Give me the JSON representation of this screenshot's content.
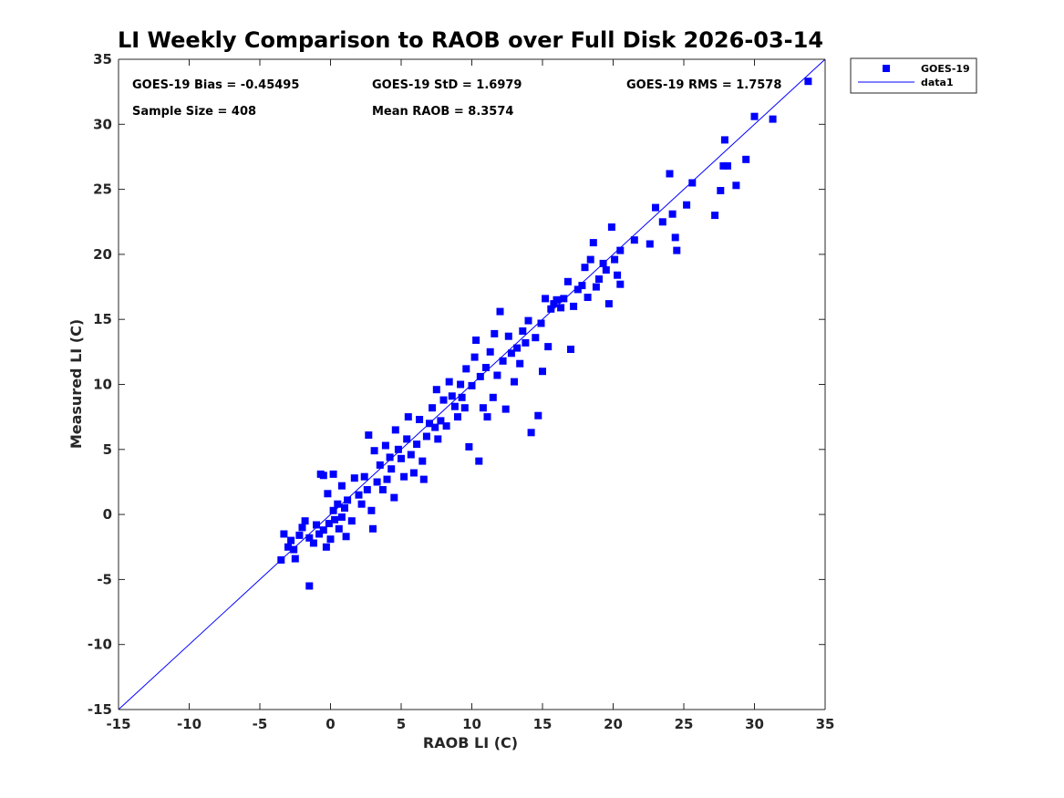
{
  "chart_data": {
    "type": "scatter",
    "title": "LI Weekly Comparison to RAOB over Full Disk 2026-03-14",
    "xlabel": "RAOB LI (C)",
    "ylabel": "Measured LI (C)",
    "xlim": [
      -15,
      35
    ],
    "ylim": [
      -15,
      35
    ],
    "xticks": [
      -15,
      -10,
      -5,
      0,
      5,
      10,
      15,
      20,
      25,
      30,
      35
    ],
    "yticks": [
      -15,
      -10,
      -5,
      0,
      5,
      10,
      15,
      20,
      25,
      30,
      35
    ],
    "xtick_labels": [
      "-15",
      "-10",
      "-5",
      "0",
      "5",
      "10",
      "15",
      "20",
      "25",
      "30",
      "35"
    ],
    "ytick_labels": [
      "-15",
      "-10",
      "-5",
      "0",
      "5",
      "10",
      "15",
      "20",
      "25",
      "30",
      "35"
    ],
    "grid": false,
    "legend_position": "outside-top-right",
    "colors": {
      "series": "#0000ff",
      "axes": "#262626",
      "text": "#000000"
    },
    "stats": {
      "bias": "GOES-19 Bias = -0.45495",
      "std": "GOES-19 StD = 1.6979",
      "rms": "GOES-19 RMS = 1.7578",
      "sample_size": "Sample Size = 408",
      "mean_raob": "Mean RAOB = 8.3574"
    },
    "series": [
      {
        "name": "GOES-19",
        "kind": "scatter",
        "marker": "square",
        "points": [
          [
            -3.5,
            -3.5
          ],
          [
            -1.5,
            -5.5
          ],
          [
            -3.3,
            -1.5
          ],
          [
            -3,
            -2.5
          ],
          [
            -2.8,
            -2.0
          ],
          [
            -2.5,
            -3.4
          ],
          [
            -2.6,
            -2.7
          ],
          [
            -2.2,
            -1.6
          ],
          [
            -2.0,
            -1.0
          ],
          [
            -1.8,
            -0.5
          ],
          [
            -1.5,
            -1.8
          ],
          [
            -1.2,
            -2.2
          ],
          [
            -1.0,
            -0.8
          ],
          [
            -0.8,
            -1.5
          ],
          [
            -0.5,
            -1.2
          ],
          [
            -0.3,
            -2.5
          ],
          [
            -0.1,
            -0.7
          ],
          [
            0.0,
            -1.9
          ],
          [
            0.2,
            0.3
          ],
          [
            0.3,
            -0.4
          ],
          [
            0.5,
            0.8
          ],
          [
            0.6,
            -1.1
          ],
          [
            0.8,
            -0.2
          ],
          [
            1.0,
            0.5
          ],
          [
            1.1,
            -1.7
          ],
          [
            -0.2,
            1.6
          ],
          [
            -0.5,
            3.0
          ],
          [
            -0.7,
            3.1
          ],
          [
            0.2,
            3.1
          ],
          [
            0.8,
            2.2
          ],
          [
            1.2,
            1.1
          ],
          [
            1.5,
            -0.5
          ],
          [
            1.7,
            2.8
          ],
          [
            2.0,
            1.5
          ],
          [
            2.2,
            0.8
          ],
          [
            2.4,
            2.9
          ],
          [
            2.6,
            1.9
          ],
          [
            2.7,
            6.1
          ],
          [
            2.9,
            0.3
          ],
          [
            3.0,
            -1.1
          ],
          [
            3.1,
            4.9
          ],
          [
            3.3,
            2.5
          ],
          [
            3.5,
            3.8
          ],
          [
            3.7,
            1.9
          ],
          [
            3.9,
            5.3
          ],
          [
            4.0,
            2.7
          ],
          [
            4.2,
            4.4
          ],
          [
            4.3,
            3.5
          ],
          [
            4.5,
            1.3
          ],
          [
            4.6,
            6.5
          ],
          [
            4.8,
            5.0
          ],
          [
            5.0,
            4.3
          ],
          [
            5.2,
            2.9
          ],
          [
            5.4,
            5.8
          ],
          [
            5.5,
            7.5
          ],
          [
            5.7,
            4.6
          ],
          [
            5.9,
            3.2
          ],
          [
            6.1,
            5.4
          ],
          [
            6.3,
            7.3
          ],
          [
            6.5,
            4.1
          ],
          [
            6.6,
            2.7
          ],
          [
            6.8,
            6.0
          ],
          [
            7.0,
            7.0
          ],
          [
            7.2,
            8.2
          ],
          [
            7.4,
            6.7
          ],
          [
            7.5,
            9.6
          ],
          [
            7.6,
            5.8
          ],
          [
            7.8,
            7.2
          ],
          [
            8.0,
            8.8
          ],
          [
            8.2,
            6.8
          ],
          [
            8.4,
            10.2
          ],
          [
            8.6,
            9.1
          ],
          [
            8.8,
            8.3
          ],
          [
            9.0,
            7.5
          ],
          [
            9.2,
            10.0
          ],
          [
            9.3,
            9.0
          ],
          [
            9.5,
            8.2
          ],
          [
            9.6,
            11.2
          ],
          [
            9.8,
            5.2
          ],
          [
            10.0,
            9.9
          ],
          [
            10.2,
            12.1
          ],
          [
            10.3,
            13.4
          ],
          [
            10.5,
            4.1
          ],
          [
            10.6,
            10.6
          ],
          [
            10.8,
            8.2
          ],
          [
            11.0,
            11.3
          ],
          [
            11.1,
            7.5
          ],
          [
            11.3,
            12.5
          ],
          [
            11.5,
            9.0
          ],
          [
            11.6,
            13.9
          ],
          [
            11.8,
            10.7
          ],
          [
            12.0,
            15.6
          ],
          [
            12.2,
            11.8
          ],
          [
            12.4,
            8.1
          ],
          [
            12.6,
            13.7
          ],
          [
            12.8,
            12.4
          ],
          [
            13.0,
            10.2
          ],
          [
            13.2,
            12.8
          ],
          [
            13.4,
            11.6
          ],
          [
            13.6,
            14.1
          ],
          [
            13.8,
            13.2
          ],
          [
            14.0,
            14.9
          ],
          [
            14.2,
            6.3
          ],
          [
            14.5,
            13.6
          ],
          [
            14.7,
            7.6
          ],
          [
            14.9,
            14.7
          ],
          [
            15.0,
            11.0
          ],
          [
            15.2,
            16.6
          ],
          [
            15.4,
            12.9
          ],
          [
            15.6,
            15.8
          ],
          [
            15.8,
            16.2
          ],
          [
            16.0,
            16.5
          ],
          [
            16.3,
            15.9
          ],
          [
            16.5,
            16.6
          ],
          [
            16.8,
            17.9
          ],
          [
            17.0,
            12.7
          ],
          [
            17.2,
            16.0
          ],
          [
            17.5,
            17.3
          ],
          [
            17.8,
            17.6
          ],
          [
            18.0,
            19.0
          ],
          [
            18.2,
            16.7
          ],
          [
            18.4,
            19.6
          ],
          [
            18.6,
            20.9
          ],
          [
            18.8,
            17.5
          ],
          [
            19.0,
            18.1
          ],
          [
            19.3,
            19.3
          ],
          [
            19.5,
            18.8
          ],
          [
            19.7,
            16.2
          ],
          [
            19.9,
            22.1
          ],
          [
            20.1,
            19.6
          ],
          [
            20.3,
            18.4
          ],
          [
            20.5,
            17.7
          ],
          [
            20.5,
            20.3
          ],
          [
            21.5,
            21.1
          ],
          [
            22.6,
            20.8
          ],
          [
            23.0,
            23.6
          ],
          [
            23.5,
            22.5
          ],
          [
            24.0,
            26.2
          ],
          [
            24.2,
            23.1
          ],
          [
            24.4,
            21.3
          ],
          [
            24.5,
            20.3
          ],
          [
            25.2,
            23.8
          ],
          [
            25.6,
            25.5
          ],
          [
            27.2,
            23.0
          ],
          [
            27.6,
            24.9
          ],
          [
            27.8,
            26.8
          ],
          [
            27.9,
            28.8
          ],
          [
            28.1,
            26.8
          ],
          [
            28.7,
            25.3
          ],
          [
            29.4,
            27.3
          ],
          [
            30.0,
            30.6
          ],
          [
            31.3,
            30.4
          ],
          [
            33.8,
            33.3
          ]
        ]
      },
      {
        "name": "data1",
        "kind": "line",
        "x": [
          -15,
          35
        ],
        "y": [
          -15,
          35
        ]
      }
    ]
  }
}
